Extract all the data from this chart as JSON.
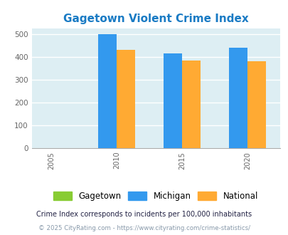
{
  "title": "Gagetown Violent Crime Index",
  "title_color": "#1a7bc4",
  "background_color": "#ddeef3",
  "years": [
    2005,
    2010,
    2015,
    2020
  ],
  "gagetown": [
    0,
    0,
    0,
    0
  ],
  "michigan": [
    0,
    500,
    414,
    438
  ],
  "national": [
    0,
    430,
    383,
    379
  ],
  "color_gagetown": "#88cc33",
  "color_michigan": "#3399ee",
  "color_national": "#ffaa33",
  "ylim": [
    0,
    525
  ],
  "yticks": [
    0,
    100,
    200,
    300,
    400,
    500
  ],
  "bar_width": 1.4,
  "legend_labels": [
    "Gagetown",
    "Michigan",
    "National"
  ],
  "legend_label_colors": [
    "#333333",
    "#333333",
    "#333333"
  ],
  "footnote1": "Crime Index corresponds to incidents per 100,000 inhabitants",
  "footnote2": "© 2025 CityRating.com - https://www.cityrating.com/crime-statistics/",
  "footnote1_color": "#222244",
  "footnote2_color": "#8899aa"
}
